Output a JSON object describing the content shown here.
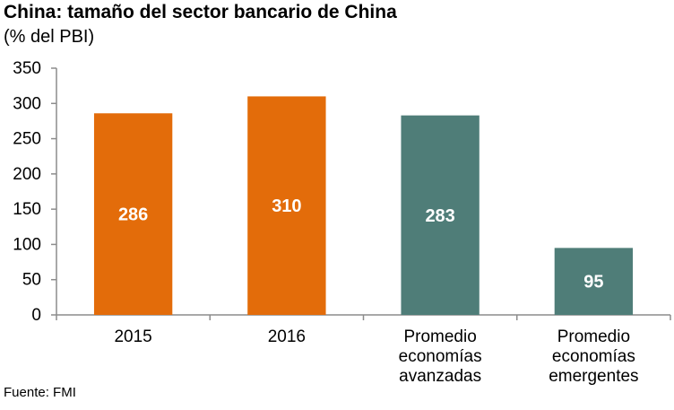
{
  "title": "China: tamaño del sector bancario de China",
  "subtitle": "(% del PBI)",
  "source": "Fuente: FMI",
  "colors": {
    "orange": "#E36C0A",
    "teal": "#4F7D78",
    "axis": "#8C8C8C"
  },
  "chart_data": {
    "type": "bar",
    "categories": [
      [
        "2015"
      ],
      [
        "2016"
      ],
      [
        "Promedio",
        "economías",
        "avanzadas"
      ],
      [
        "Promedio",
        "economías",
        "emergentes"
      ]
    ],
    "values": [
      286,
      310,
      283,
      95
    ],
    "value_labels": [
      "286",
      "310",
      "283",
      "95"
    ],
    "bar_colors": [
      "#E36C0A",
      "#E36C0A",
      "#4F7D78",
      "#4F7D78"
    ],
    "ylim": [
      0,
      350
    ],
    "yticks": [
      0,
      50,
      100,
      150,
      200,
      250,
      300,
      350
    ],
    "grid": false,
    "legend": "none"
  }
}
